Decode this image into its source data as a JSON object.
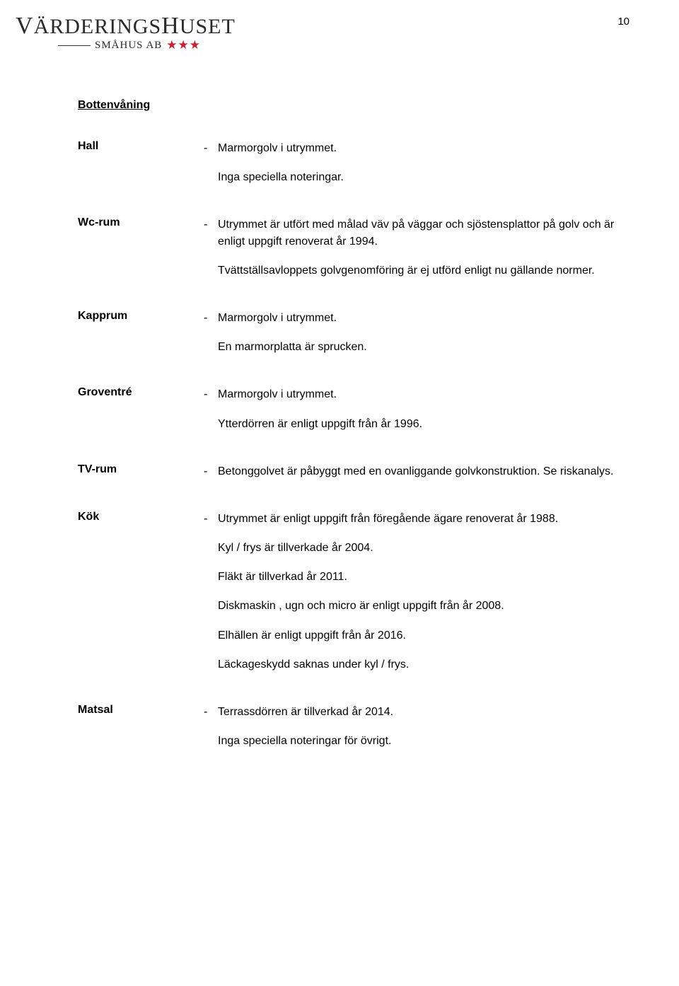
{
  "page_number": "10",
  "logo": {
    "main_text_parts": [
      "V",
      "ÄRDERINGS",
      "H",
      "USET"
    ],
    "sub_text": "SMÅHUS AB",
    "star_count": 3,
    "star_color": "#cc1f2f",
    "main_color": "#2a2a2a"
  },
  "section_title": "Bottenvåning",
  "rows": [
    {
      "label": "Hall",
      "bullet": "Marmorgolv i utrymmet.",
      "notes": [
        "Inga speciella noteringar."
      ]
    },
    {
      "label": "Wc-rum",
      "bullet": "Utrymmet är utfört med målad väv på väggar och sjöstensplattor på golv och är enligt uppgift renoverat år 1994.",
      "notes": [
        "Tvättställsavloppets golvgenomföring är ej utförd enligt nu gällande normer."
      ]
    },
    {
      "label": "Kapprum",
      "bullet": "Marmorgolv i utrymmet.",
      "notes": [
        "En marmorplatta är sprucken."
      ]
    },
    {
      "label": "Groventré",
      "bullet": "Marmorgolv i utrymmet.",
      "notes": [
        "Ytterdörren är enligt uppgift från år 1996."
      ]
    },
    {
      "label": "TV-rum",
      "bullet": "Betonggolvet är påbyggt med en ovanliggande golvkonstruktion. Se riskanalys.",
      "notes": []
    },
    {
      "label": "Kök",
      "bullet": "Utrymmet är enligt uppgift från föregående ägare renoverat år 1988.",
      "notes": [
        "Kyl / frys är tillverkade år 2004.",
        "Fläkt är tillverkad år 2011.",
        "Diskmaskin , ugn och micro är enligt uppgift från år 2008.",
        "Elhällen är enligt uppgift från år 2016.",
        "Läckageskydd saknas under kyl / frys."
      ]
    },
    {
      "label": "Matsal",
      "bullet": "Terrassdörren är tillverkad år 2014.",
      "notes": [
        "Inga speciella noteringar för övrigt."
      ]
    }
  ]
}
